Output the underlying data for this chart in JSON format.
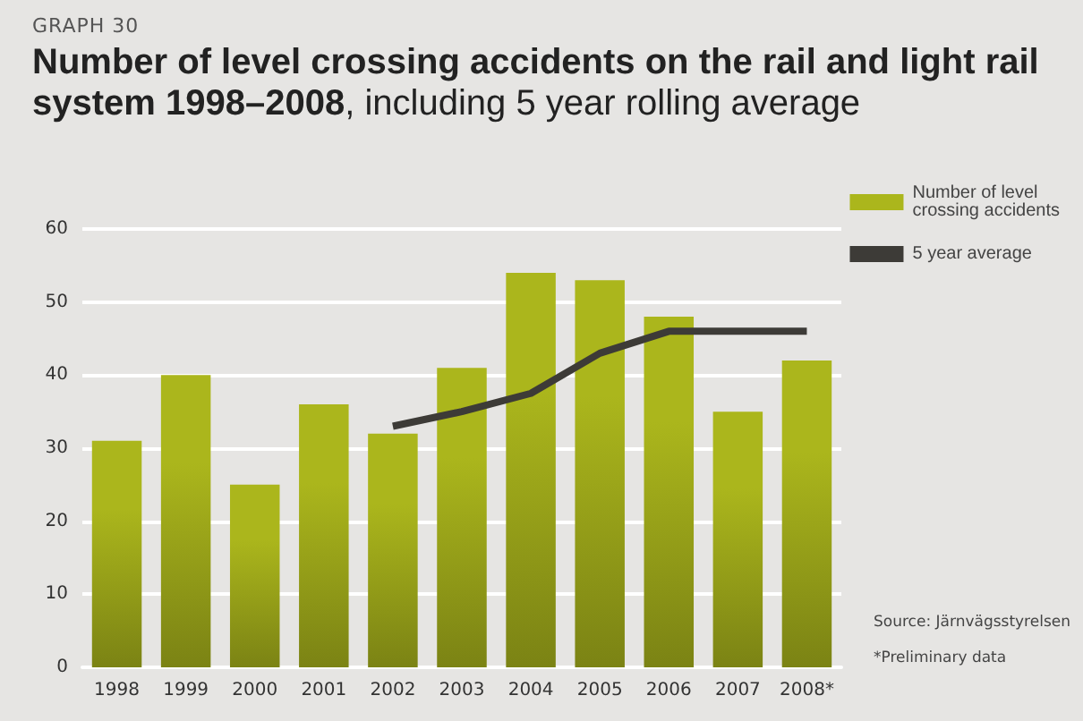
{
  "chart_data": {
    "type": "bar",
    "subtitle": "GRAPH 30",
    "title": "Number of level crossing accidents on the rail and light rail system 1998–2008, including 5 year rolling average",
    "categories": [
      "1998",
      "1999",
      "2000",
      "2001",
      "2002",
      "2003",
      "2004",
      "2005",
      "2006",
      "2007",
      "2008*"
    ],
    "series": [
      {
        "name": "Number of level crossing accidents",
        "color": "#abb61c",
        "values": [
          31,
          40,
          25,
          36,
          32,
          41,
          54,
          53,
          48,
          35,
          42
        ]
      },
      {
        "name": "5 year average",
        "type": "line",
        "color": "#3d3b37",
        "values": [
          null,
          null,
          null,
          null,
          33,
          35,
          37.5,
          43,
          46,
          46,
          46
        ]
      }
    ],
    "ylim": [
      0,
      60
    ],
    "yticks": [
      0,
      10,
      20,
      30,
      40,
      50,
      60
    ],
    "grid": "y",
    "legend": "right",
    "marker": "none",
    "annotations": [
      "Source: Järnvägsstyrelsen",
      "*Preliminary data"
    ]
  }
}
